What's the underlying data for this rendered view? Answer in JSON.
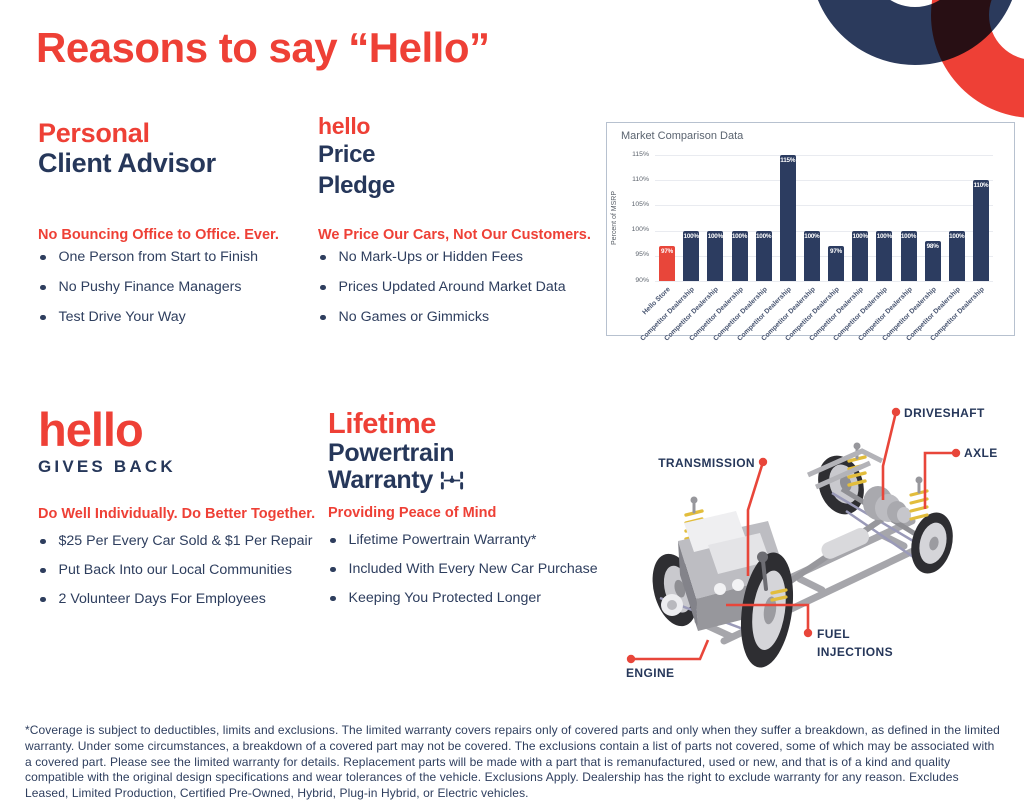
{
  "page": {
    "title": "Reasons to say “Hello”"
  },
  "sections": {
    "advisor": {
      "title_accent": "Personal",
      "title_main": "Client Advisor",
      "tagline": "No Bouncing Office to Office. Ever.",
      "bullets": [
        "One Person from Start to Finish",
        "No Pushy Finance Managers",
        "Test Drive Your Way"
      ]
    },
    "price_pledge": {
      "logo": "hello",
      "title_line1": "Price",
      "title_line2": "Pledge",
      "tagline": "We Price Our Cars, Not Our Customers.",
      "bullets": [
        "No Mark-Ups or Hidden Fees",
        "Prices Updated Around Market Data",
        "No Games or Gimmicks"
      ]
    },
    "gives_back": {
      "logo": "hello",
      "logo_sub": "GIVES BACK",
      "tagline": "Do Well Individually. Do Better Together.",
      "bullets": [
        "$25 Per Every Car Sold & $1 Per Repair",
        "Put Back Into our Local Communities",
        "2 Volunteer Days For Employees"
      ]
    },
    "warranty": {
      "title_accent": "Lifetime",
      "title_line1": "Powertrain",
      "title_line2": "Warranty",
      "tagline": "Providing Peace of Mind",
      "bullets": [
        "Lifetime Powertrain Warranty*",
        "Included With Every New Car Purchase",
        "Keeping You Protected Longer"
      ]
    }
  },
  "chart_data": {
    "type": "bar",
    "title": "Market Comparison Data",
    "xlabel": "",
    "ylabel": "Percent of MSRP",
    "ylim": [
      90,
      115
    ],
    "yticks": [
      90,
      95,
      100,
      105,
      110,
      115
    ],
    "grid": true,
    "legend": "none",
    "categories": [
      "Hello Store",
      "Competitor Dealership",
      "Competitor Dealership",
      "Competitor Dealership",
      "Competitor Dealership",
      "Competitor Dealership",
      "Competitor Dealership",
      "Competitor Dealership",
      "Competitor Dealership",
      "Competitor Dealership",
      "Competitor Dealership",
      "Competitor Dealership",
      "Competitor Dealership",
      "Competitor Dealership"
    ],
    "values": [
      97,
      100,
      100,
      100,
      100,
      115,
      100,
      97,
      100,
      100,
      100,
      98,
      100,
      110
    ],
    "bar_labels": [
      "97%",
      "100%",
      "100%",
      "100%",
      "100%",
      "115%",
      "100%",
      "97%",
      "100%",
      "100%",
      "100%",
      "98%",
      "100%",
      "110%"
    ],
    "highlight_index": 0,
    "highlight_color": "#e8463a",
    "bar_color": "#2c3c60"
  },
  "diagram": {
    "labels": {
      "transmission": "TRANSMISSION",
      "driveshaft": "DRIVESHAFT",
      "axle": "AXLE",
      "fuel_line1": "FUEL",
      "fuel_line2": "INJECTIONS",
      "engine": "ENGINE"
    }
  },
  "footnote": "*Coverage is subject to deductibles, limits and exclusions. The limited warranty covers repairs only of covered parts and only when they suffer a breakdown, as defined in the limited warranty. Under some circumstances, a breakdown of a covered part may not be covered. The exclusions contain a list of parts not covered, some of which may be associated with a covered part. Please see the limited warranty for details. Replacement parts will be made with a part that is remanufactured, used or new, and that is of a kind and quality compatible with the original design specifications and wear tolerances of the vehicle. Exclusions Apply. Dealership has the right to exclude warranty for any reason. Excludes Leased, Limited Production, Certified Pre-Owned, Hybrid, Plug-in Hybrid, or Electric vehicles.",
  "colors": {
    "accent": "#ee4036",
    "navy": "#26375a"
  }
}
